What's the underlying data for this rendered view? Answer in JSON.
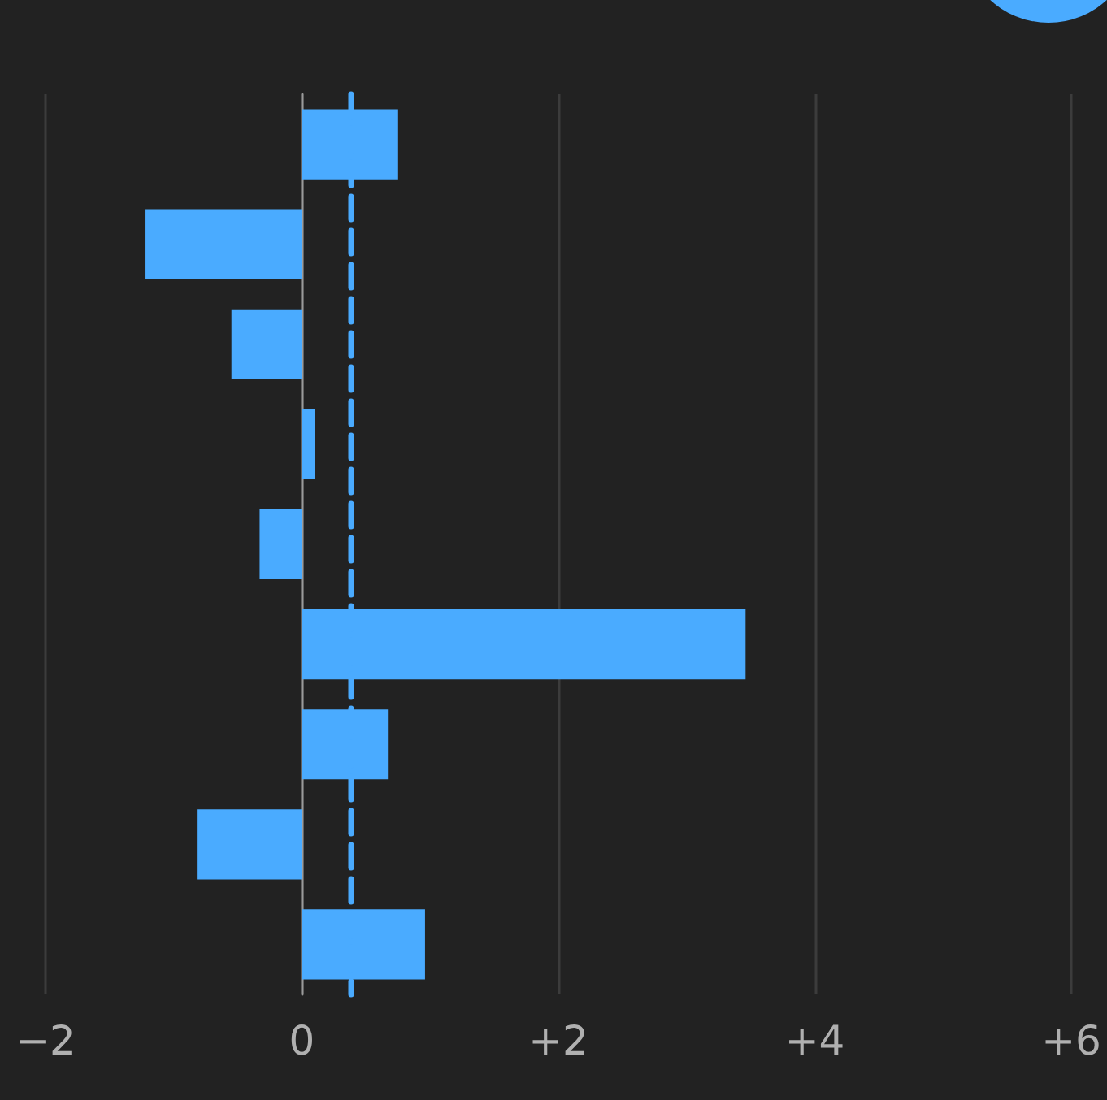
{
  "chart_data": {
    "type": "bar",
    "orientation": "horizontal",
    "categories": [
      null,
      null,
      null,
      null,
      null,
      null,
      null,
      null,
      null
    ],
    "values": [
      0.75,
      -1.22,
      -0.55,
      0.1,
      -0.33,
      3.46,
      0.67,
      -0.82,
      0.96
    ],
    "color": "#4aabff",
    "xlim": [
      -2,
      6
    ],
    "xticks": [
      {
        "value": -2,
        "label": "−2"
      },
      {
        "value": 0,
        "label": "0"
      },
      {
        "value": 2,
        "label": "+2"
      },
      {
        "value": 4,
        "label": "+4"
      },
      {
        "value": 6,
        "label": "+6"
      }
    ],
    "grid": "x",
    "ref_lines": [
      {
        "axis": "x",
        "value": 0.38,
        "color": "#4aabff",
        "line_style": "dashed"
      }
    ]
  }
}
